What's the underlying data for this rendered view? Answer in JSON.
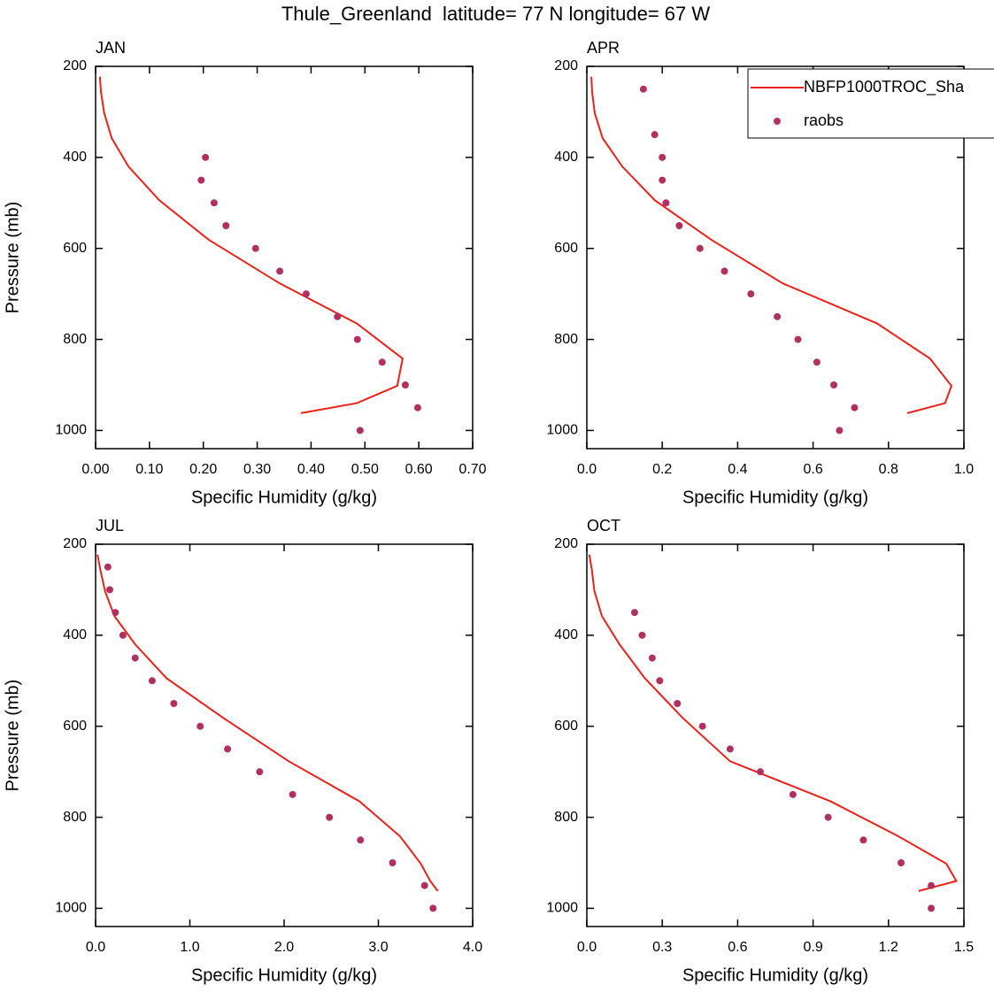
{
  "title": "Thule_Greenland  latitude= 77 N longitude= 67 W",
  "chart_data": [
    {
      "type": "line",
      "title": "JAN",
      "xlabel": "Specific Humidity (g/kg)",
      "ylabel": "Pressure (mb)",
      "xlim": [
        0,
        0.7
      ],
      "xticks": [
        {
          "value": 0,
          "label": "0.00"
        },
        {
          "value": 0.1,
          "label": "0.10"
        },
        {
          "value": 0.2,
          "label": "0.20"
        },
        {
          "value": 0.3,
          "label": "0.30"
        },
        {
          "value": 0.4,
          "label": "0.40"
        },
        {
          "value": 0.5,
          "label": "0.50"
        },
        {
          "value": 0.6,
          "label": "0.60"
        },
        {
          "value": 0.7,
          "label": "0.70"
        }
      ],
      "ylim": [
        1040,
        200
      ],
      "yticks": [
        200,
        400,
        600,
        800,
        1000
      ],
      "series": [
        {
          "mode": "lines",
          "color": "#e8221b",
          "x": [
            0.008,
            0.01,
            0.016,
            0.03,
            0.061,
            0.118,
            0.21,
            0.342,
            0.485,
            0.57,
            0.56,
            0.485,
            0.381
          ],
          "values": [
            223,
            256,
            303,
            358,
            420,
            494,
            581,
            677,
            765,
            842,
            902,
            940,
            962
          ]
        },
        {
          "mode": "markers",
          "color": "#b03060",
          "x": [
            0.204,
            0.196,
            0.22,
            0.242,
            0.297,
            0.342,
            0.391,
            0.449,
            0.486,
            0.532,
            0.575,
            0.598,
            0.491
          ],
          "values": [
            400,
            450,
            500,
            550,
            600,
            650,
            700,
            750,
            800,
            850,
            900,
            950,
            1000
          ]
        }
      ]
    },
    {
      "type": "line",
      "title": "APR",
      "xlabel": "Specific Humidity (g/kg)",
      "legend": true,
      "xlim": [
        0,
        1
      ],
      "xticks": [
        {
          "value": 0,
          "label": "0.0"
        },
        0.2,
        0.4,
        0.6,
        0.8,
        {
          "value": 1,
          "label": "1.0"
        }
      ],
      "ylim": [
        1040,
        200
      ],
      "yticks": [
        200,
        400,
        600,
        800,
        1000
      ],
      "series": [
        {
          "name": "NBFP1000TROC_Sha",
          "mode": "lines",
          "color": "#e8221b",
          "x": [
            0.012,
            0.014,
            0.021,
            0.042,
            0.094,
            0.18,
            0.33,
            0.52,
            0.77,
            0.91,
            0.967,
            0.95,
            0.85
          ],
          "values": [
            223,
            256,
            303,
            358,
            420,
            494,
            581,
            677,
            765,
            842,
            902,
            940,
            962
          ]
        },
        {
          "name": "raobs",
          "mode": "markers",
          "color": "#b03060",
          "x": [
            0.15,
            0.18,
            0.2,
            0.2,
            0.21,
            0.245,
            0.3,
            0.365,
            0.435,
            0.505,
            0.56,
            0.61,
            0.655,
            0.71,
            0.67
          ],
          "values": [
            250,
            350,
            400,
            450,
            500,
            550,
            600,
            650,
            700,
            750,
            800,
            850,
            900,
            950,
            1000
          ]
        }
      ]
    },
    {
      "type": "line",
      "title": "JUL",
      "xlabel": "Specific Humidity (g/kg)",
      "ylabel": "Pressure (mb)",
      "xlim": [
        0,
        4
      ],
      "xticks": [
        {
          "value": 0,
          "label": "0.0"
        },
        {
          "value": 1,
          "label": "1.0"
        },
        {
          "value": 2,
          "label": "2.0"
        },
        {
          "value": 3,
          "label": "3.0"
        },
        {
          "value": 4,
          "label": "4.0"
        }
      ],
      "ylim": [
        1040,
        200
      ],
      "yticks": [
        200,
        400,
        600,
        800,
        1000
      ],
      "series": [
        {
          "mode": "lines",
          "color": "#e8221b",
          "x": [
            0.02,
            0.05,
            0.1,
            0.2,
            0.42,
            0.75,
            1.35,
            2.05,
            2.8,
            3.23,
            3.45,
            3.55,
            3.63
          ],
          "values": [
            223,
            256,
            303,
            358,
            420,
            494,
            581,
            677,
            765,
            842,
            902,
            940,
            962
          ]
        },
        {
          "mode": "markers",
          "color": "#b03060",
          "x": [
            0.13,
            0.15,
            0.21,
            0.29,
            0.42,
            0.6,
            0.83,
            1.11,
            1.4,
            1.74,
            2.09,
            2.48,
            2.81,
            3.15,
            3.49,
            3.58
          ],
          "values": [
            250,
            300,
            350,
            400,
            450,
            500,
            550,
            600,
            650,
            700,
            750,
            800,
            850,
            900,
            950,
            1000
          ]
        }
      ]
    },
    {
      "type": "line",
      "title": "OCT",
      "xlabel": "Specific Humidity (g/kg)",
      "xlim": [
        0,
        1.5
      ],
      "xticks": [
        {
          "value": 0,
          "label": "0.0"
        },
        0.3,
        0.6,
        0.9,
        1.2,
        1.5
      ],
      "ylim": [
        1040,
        200
      ],
      "yticks": [
        200,
        400,
        600,
        800,
        1000
      ],
      "series": [
        {
          "mode": "lines",
          "color": "#e8221b",
          "x": [
            0.01,
            0.02,
            0.03,
            0.06,
            0.13,
            0.23,
            0.38,
            0.57,
            0.97,
            1.24,
            1.43,
            1.47,
            1.32
          ],
          "values": [
            223,
            256,
            303,
            358,
            420,
            494,
            581,
            677,
            765,
            842,
            902,
            940,
            962
          ]
        },
        {
          "mode": "markers",
          "color": "#b03060",
          "x": [
            0.19,
            0.22,
            0.26,
            0.29,
            0.36,
            0.46,
            0.57,
            0.69,
            0.82,
            0.96,
            1.1,
            1.25,
            1.37,
            1.37
          ],
          "values": [
            350,
            400,
            450,
            500,
            550,
            600,
            650,
            700,
            750,
            800,
            850,
            900,
            950,
            1000
          ]
        }
      ]
    }
  ]
}
